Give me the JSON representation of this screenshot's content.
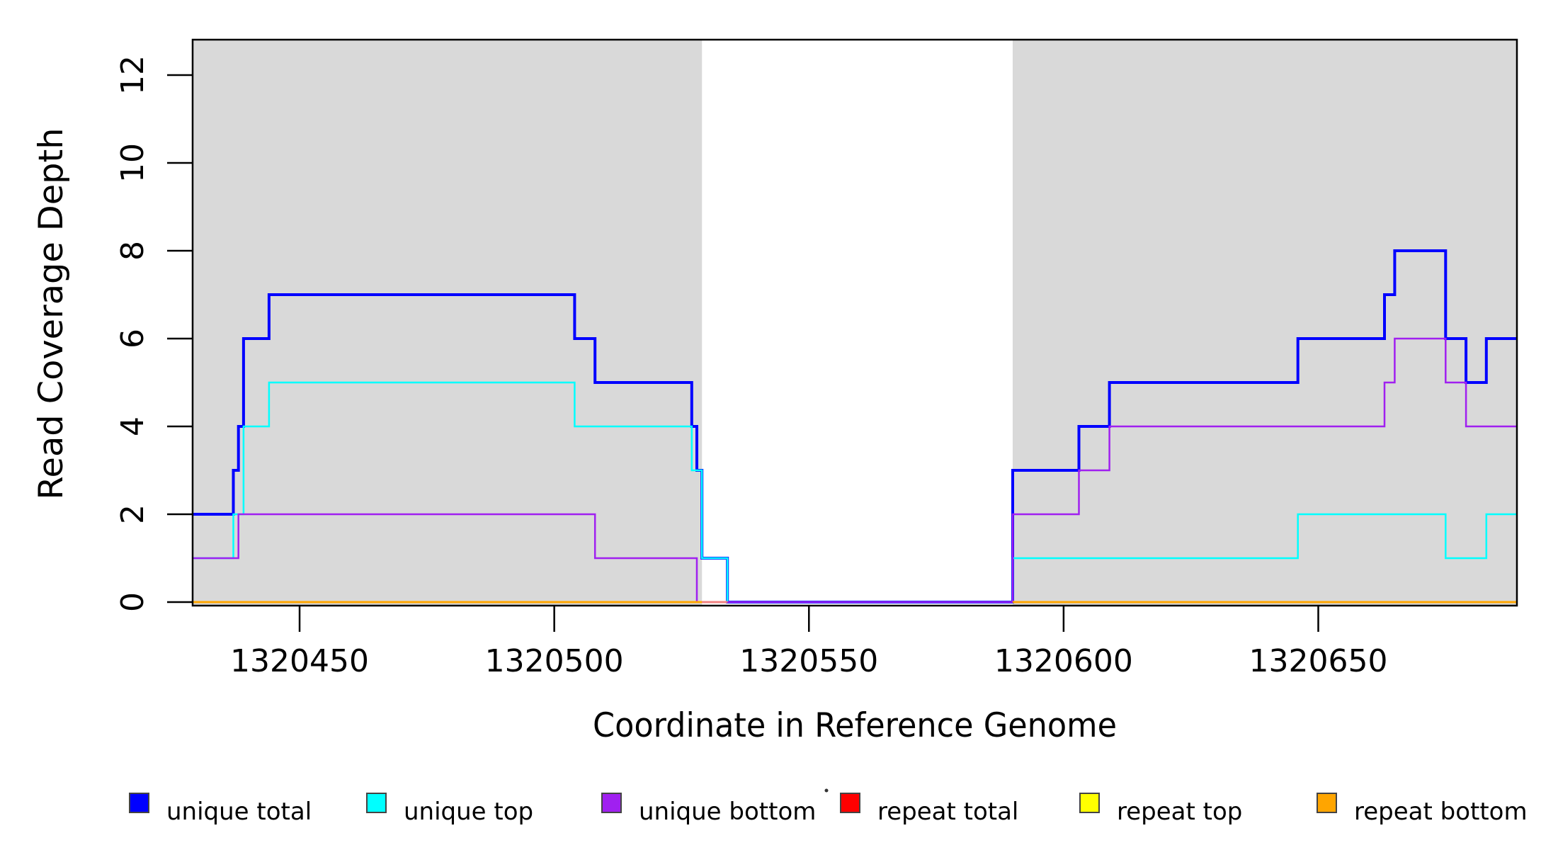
{
  "chart_data": {
    "type": "line",
    "line_style": "step-after",
    "title": "",
    "xlabel": "Coordinate in Reference Genome",
    "ylabel": "Read Coverage Depth",
    "xlim": [
      1320429,
      1320689
    ],
    "ylim": [
      0,
      12.8
    ],
    "x_ticks": [
      1320450,
      1320500,
      1320550,
      1320600,
      1320650
    ],
    "y_ticks": [
      0,
      2,
      4,
      6,
      8,
      10,
      12
    ],
    "grid": false,
    "legend_position": "bottom",
    "plot_background": "#ffffff",
    "shaded_regions": [
      {
        "name": "unique-region-left",
        "x0": 1320429,
        "x1": 1320529,
        "color": "#D9D9D9"
      },
      {
        "name": "unique-region-right",
        "x0": 1320590,
        "x1": 1320689,
        "color": "#D9D9D9"
      }
    ],
    "series": [
      {
        "name": "repeat total",
        "color": "#FF0000",
        "width": 2.5,
        "points": [
          [
            1320429,
            0
          ]
        ]
      },
      {
        "name": "repeat top",
        "color": "#FFFF00",
        "width": 2.5,
        "points": [
          [
            1320429,
            0
          ]
        ]
      },
      {
        "name": "repeat bottom",
        "color": "#FFA500",
        "width": 3,
        "points": [
          [
            1320429,
            0
          ]
        ]
      },
      {
        "name": "unique total",
        "color": "#0000FF",
        "width": 4,
        "points": [
          [
            1320429,
            2
          ],
          [
            1320437,
            3
          ],
          [
            1320438,
            4
          ],
          [
            1320439,
            6
          ],
          [
            1320444,
            7
          ],
          [
            1320504,
            6
          ],
          [
            1320508,
            5
          ],
          [
            1320527,
            4
          ],
          [
            1320528,
            3
          ],
          [
            1320529,
            1
          ],
          [
            1320534,
            0
          ],
          [
            1320590,
            3
          ],
          [
            1320603,
            4
          ],
          [
            1320609,
            5
          ],
          [
            1320646,
            6
          ],
          [
            1320663,
            7
          ],
          [
            1320665,
            8
          ],
          [
            1320675,
            6
          ],
          [
            1320679,
            5
          ],
          [
            1320683,
            6
          ]
        ]
      },
      {
        "name": "unique top",
        "color": "#00FFFF",
        "width": 2.5,
        "points": [
          [
            1320429,
            1
          ],
          [
            1320437,
            2
          ],
          [
            1320439,
            4
          ],
          [
            1320444,
            5
          ],
          [
            1320504,
            4
          ],
          [
            1320527,
            3
          ],
          [
            1320529,
            1
          ],
          [
            1320534,
            0
          ],
          [
            1320590,
            1
          ],
          [
            1320646,
            2
          ],
          [
            1320675,
            1
          ],
          [
            1320683,
            2
          ]
        ]
      },
      {
        "name": "unique bottom",
        "color": "#A020F0",
        "width": 2.5,
        "points": [
          [
            1320429,
            1
          ],
          [
            1320438,
            2
          ],
          [
            1320508,
            1
          ],
          [
            1320528,
            0
          ],
          [
            1320590,
            2
          ],
          [
            1320603,
            3
          ],
          [
            1320609,
            4
          ],
          [
            1320663,
            5
          ],
          [
            1320665,
            6
          ],
          [
            1320675,
            5
          ],
          [
            1320679,
            4
          ]
        ]
      }
    ],
    "zero_line_overlays": [
      {
        "name": "zero-line-mixed-red",
        "x0": 1320528,
        "x1": 1320534,
        "color": "#F08080",
        "width": 3
      },
      {
        "name": "zero-line-orange-left",
        "x0": 1320429,
        "x1": 1320529,
        "color": "#FFA500",
        "width": 3
      },
      {
        "name": "zero-line-orange-right",
        "x0": 1320590,
        "x1": 1320689,
        "color": "#FFA500",
        "width": 3
      }
    ]
  },
  "legend": {
    "items": [
      {
        "label": "unique total",
        "color": "#0000FF"
      },
      {
        "label": "unique top",
        "color": "#00FFFF"
      },
      {
        "label": "unique bottom",
        "color": "#A020F0"
      },
      {
        "label": "repeat total",
        "color": "#FF0000"
      },
      {
        "label": "repeat top",
        "color": "#FFFF00"
      },
      {
        "label": "repeat bottom",
        "color": "#FFA500"
      }
    ]
  }
}
